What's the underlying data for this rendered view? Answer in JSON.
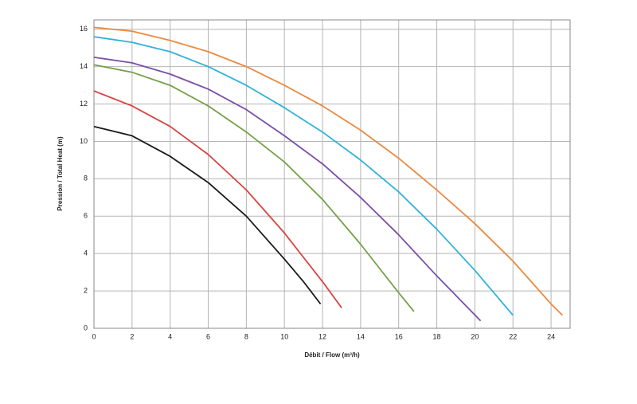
{
  "chart_data": {
    "type": "line",
    "x_label": "Débit / Flow (m³/h)",
    "y_label": "Pression / Total Heat (m)",
    "xlim": [
      0,
      25
    ],
    "ylim": [
      0,
      16.5
    ],
    "xticks": [
      0,
      2,
      4,
      6,
      8,
      10,
      12,
      14,
      16,
      18,
      20,
      22,
      24
    ],
    "yticks": [
      0,
      2,
      4,
      6,
      8,
      10,
      12,
      14,
      16
    ],
    "grid": true,
    "series": [
      {
        "color": "#1a1a1a",
        "x": [
          0,
          2,
          4,
          6,
          8,
          10,
          11,
          11.9
        ],
        "values": [
          10.8,
          10.3,
          9.2,
          7.8,
          6,
          3.7,
          2.5,
          1.3
        ]
      },
      {
        "color": "#d9433f",
        "x": [
          0,
          2,
          4,
          6,
          8,
          10,
          12,
          13
        ],
        "values": [
          12.7,
          11.9,
          10.8,
          9.3,
          7.4,
          5.1,
          2.5,
          1.1
        ]
      },
      {
        "color": "#76a047",
        "x": [
          0,
          2,
          4,
          6,
          8,
          10,
          12,
          14,
          16,
          16.8
        ],
        "values": [
          14.1,
          13.7,
          13,
          11.9,
          10.5,
          8.9,
          6.9,
          4.5,
          1.9,
          0.9
        ]
      },
      {
        "color": "#7a4fa8",
        "x": [
          0,
          2,
          4,
          6,
          8,
          10,
          12,
          14,
          16,
          18,
          20.3
        ],
        "values": [
          14.5,
          14.2,
          13.6,
          12.8,
          11.7,
          10.3,
          8.8,
          7.0,
          5,
          2.8,
          0.4
        ]
      },
      {
        "color": "#2fb2d8",
        "x": [
          0,
          2,
          4,
          6,
          8,
          10,
          12,
          14,
          16,
          18,
          20,
          22
        ],
        "values": [
          15.6,
          15.3,
          14.8,
          14,
          13,
          11.8,
          10.5,
          9,
          7.3,
          5.3,
          3.1,
          0.7
        ]
      },
      {
        "color": "#ea8a40",
        "x": [
          0,
          2,
          4,
          6,
          8,
          10,
          12,
          14,
          16,
          18,
          20,
          22,
          24,
          24.6
        ],
        "values": [
          16.1,
          15.9,
          15.4,
          14.8,
          14,
          13,
          11.9,
          10.6,
          9.1,
          7.4,
          5.6,
          3.6,
          1.3,
          0.7
        ]
      }
    ]
  }
}
